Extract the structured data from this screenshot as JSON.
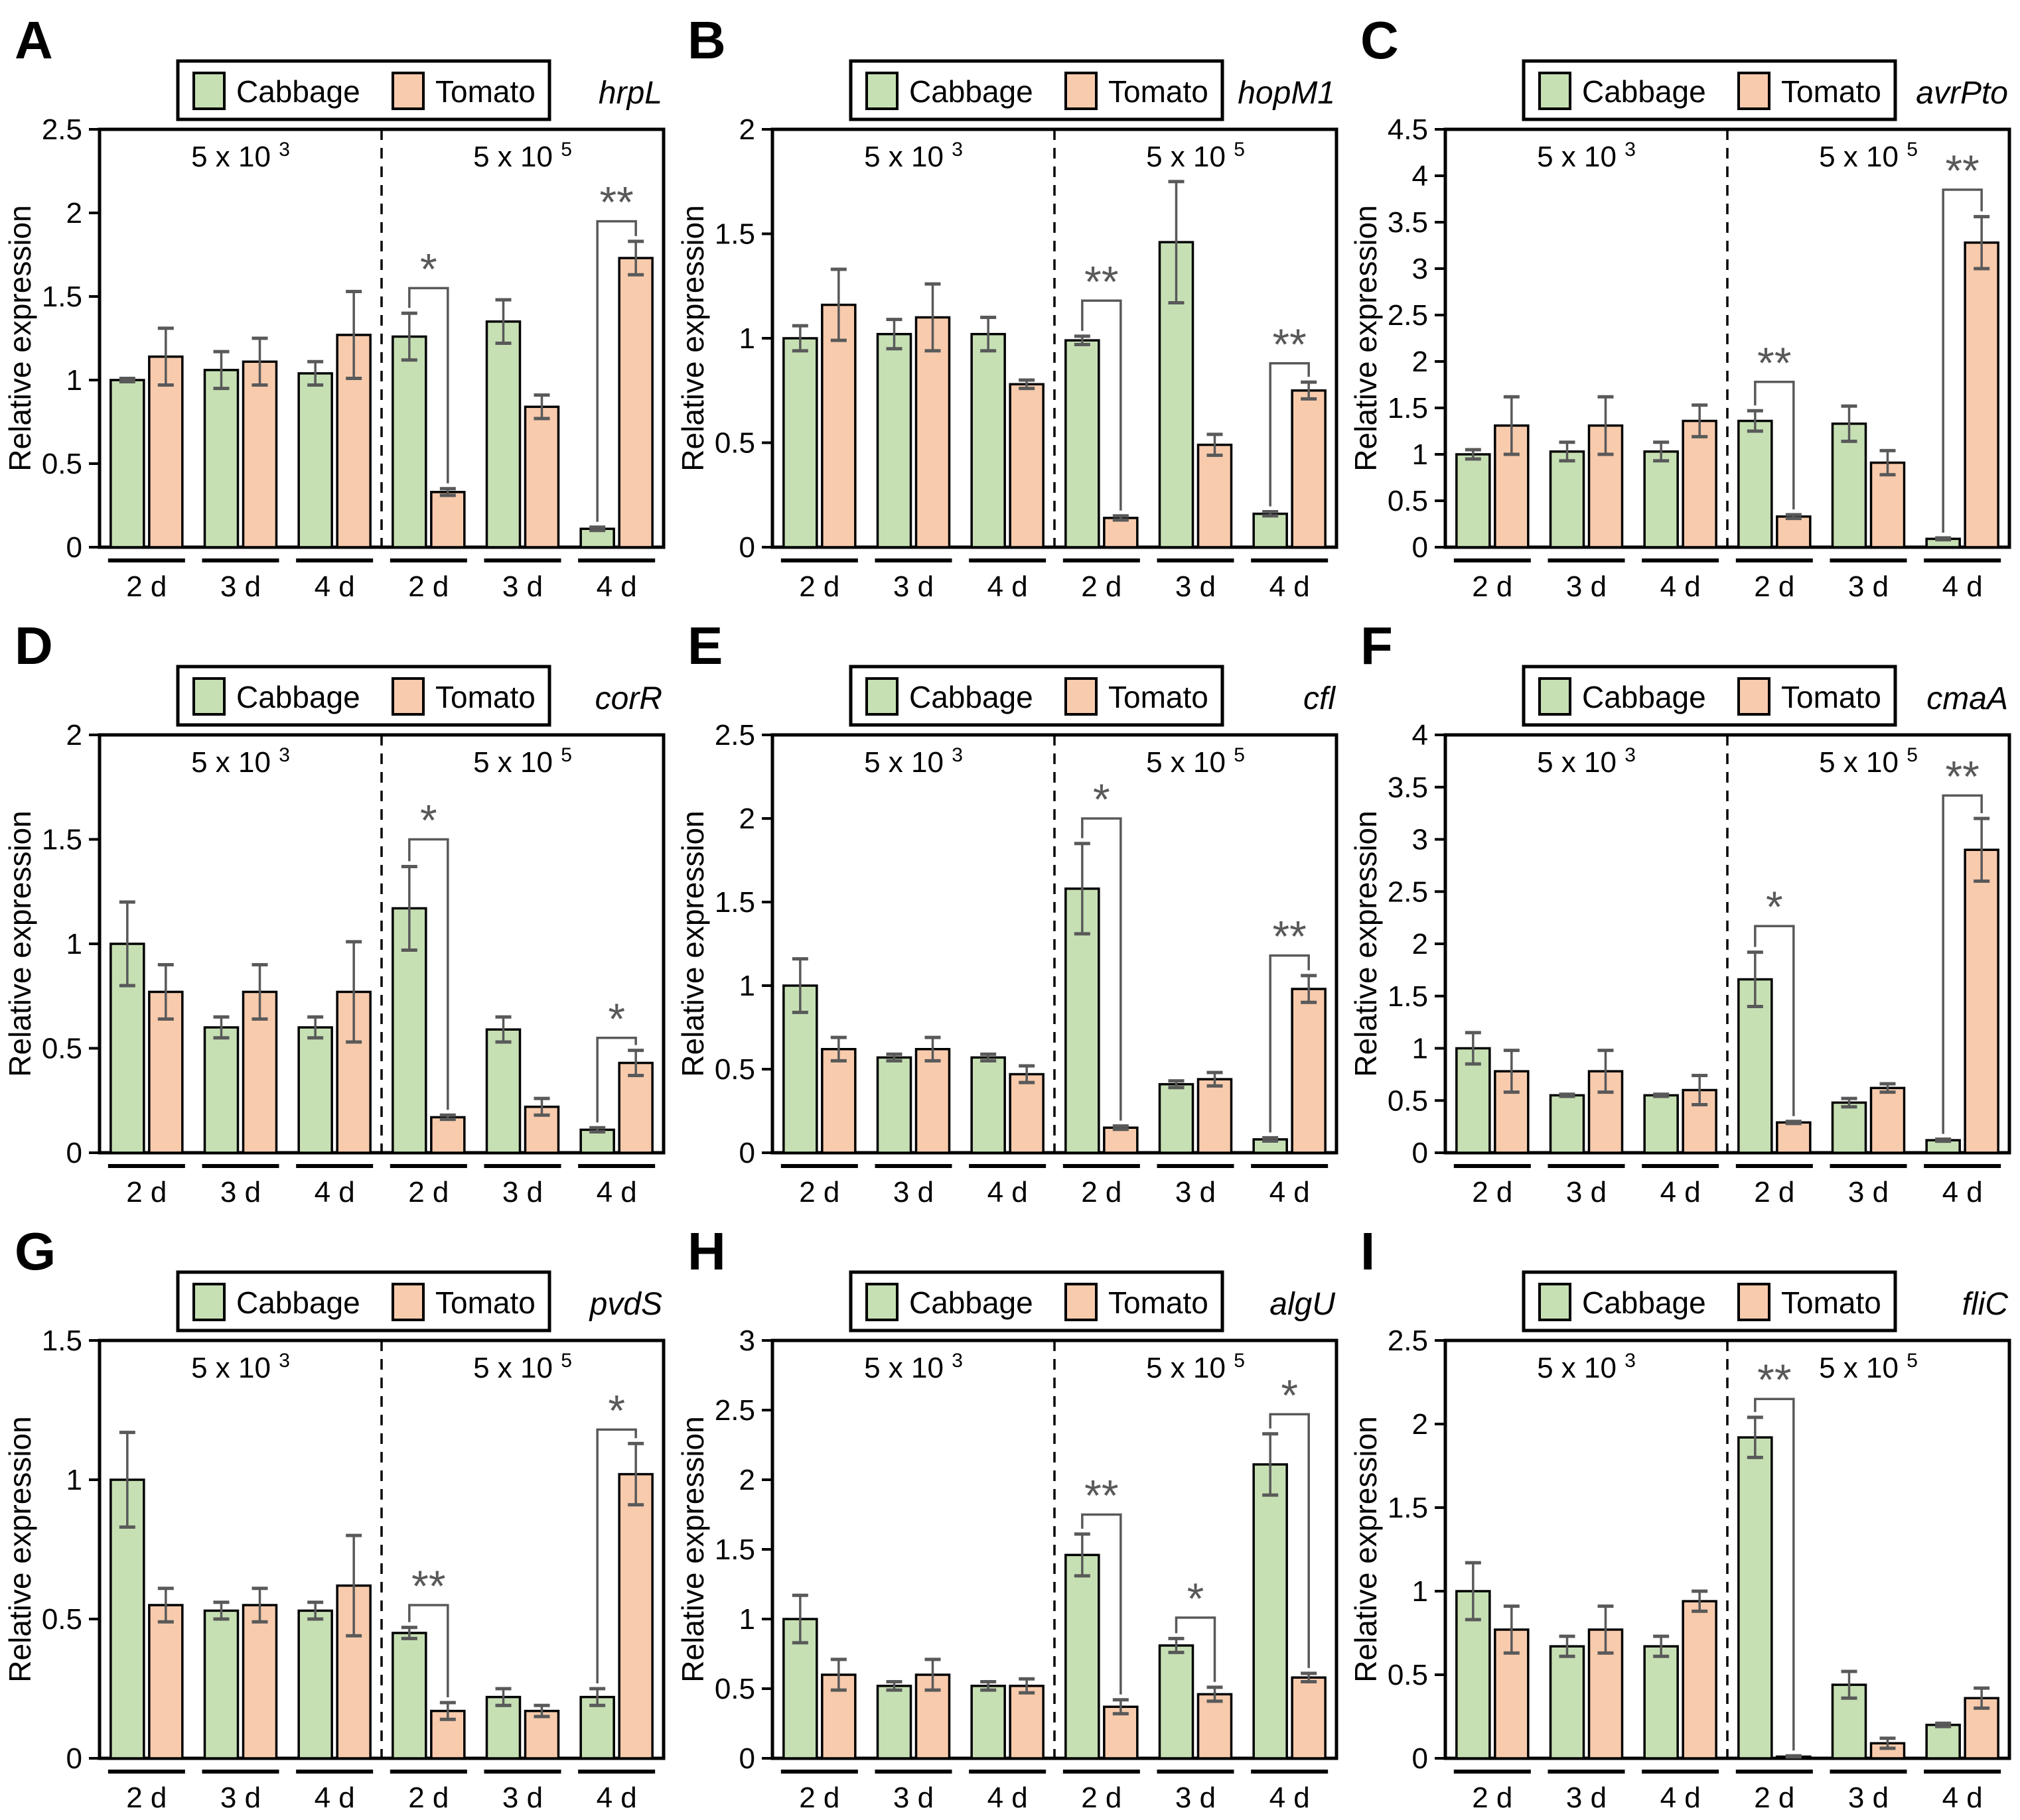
{
  "figure": {
    "ylabel": "Relative expression",
    "legend": {
      "series1_label": "Cabbage",
      "series2_label": "Tomato"
    },
    "conditions": [
      {
        "base": "5 x 10",
        "exp": "3"
      },
      {
        "base": "5 x 10",
        "exp": "5"
      }
    ],
    "timepoints": [
      "2 d",
      "3 d",
      "4 d",
      "2 d",
      "3 d",
      "4 d"
    ],
    "colors": {
      "cabbage_fill": "#c6e0b4",
      "tomato_fill": "#f8cbad",
      "bar_stroke": "#000000",
      "error_color": "#595959",
      "sig_color": "#595959",
      "text_color": "#000000"
    }
  },
  "chart_data": [
    {
      "type": "bar",
      "panel": "A",
      "gene": "hrpL",
      "ylim": [
        0,
        2.5
      ],
      "ytick_step": 0.5,
      "categories": [
        "2 d",
        "3 d",
        "4 d",
        "2 d",
        "3 d",
        "4 d"
      ],
      "series": [
        {
          "name": "Cabbage",
          "values": [
            1.0,
            1.06,
            1.04,
            1.26,
            1.35,
            0.11
          ],
          "errors": [
            0.01,
            0.11,
            0.07,
            0.14,
            0.13,
            0.01
          ]
        },
        {
          "name": "Tomato",
          "values": [
            1.14,
            1.11,
            1.27,
            0.33,
            0.84,
            1.73
          ],
          "errors": [
            0.17,
            0.14,
            0.26,
            0.02,
            0.07,
            0.1
          ]
        }
      ],
      "significance": [
        {
          "group": 3,
          "label": "*",
          "height": 1.55
        },
        {
          "group": 5,
          "label": "**",
          "height": 1.95
        }
      ]
    },
    {
      "type": "bar",
      "panel": "B",
      "gene": "hopM1",
      "ylim": [
        0,
        2
      ],
      "ytick_step": 0.5,
      "categories": [
        "2 d",
        "3 d",
        "4 d",
        "2 d",
        "3 d",
        "4 d"
      ],
      "series": [
        {
          "name": "Cabbage",
          "values": [
            1.0,
            1.02,
            1.02,
            0.99,
            1.46,
            0.16
          ],
          "errors": [
            0.06,
            0.07,
            0.08,
            0.02,
            0.29,
            0.01
          ]
        },
        {
          "name": "Tomato",
          "values": [
            1.16,
            1.1,
            0.78,
            0.14,
            0.49,
            0.75
          ],
          "errors": [
            0.17,
            0.16,
            0.02,
            0.01,
            0.05,
            0.04
          ]
        }
      ],
      "significance": [
        {
          "group": 3,
          "label": "**",
          "height": 1.18
        },
        {
          "group": 5,
          "label": "**",
          "height": 0.88
        }
      ]
    },
    {
      "type": "bar",
      "panel": "C",
      "gene": "avrPto",
      "ylim": [
        0,
        4.5
      ],
      "ytick_step": 0.5,
      "categories": [
        "2 d",
        "3 d",
        "4 d",
        "2 d",
        "3 d",
        "4 d"
      ],
      "series": [
        {
          "name": "Cabbage",
          "values": [
            1.0,
            1.03,
            1.03,
            1.36,
            1.33,
            0.09
          ],
          "errors": [
            0.05,
            0.1,
            0.1,
            0.11,
            0.19,
            0.01
          ]
        },
        {
          "name": "Tomato",
          "values": [
            1.31,
            1.31,
            1.36,
            0.33,
            0.91,
            3.28
          ],
          "errors": [
            0.31,
            0.31,
            0.17,
            0.02,
            0.13,
            0.28
          ]
        }
      ],
      "significance": [
        {
          "group": 3,
          "label": "**",
          "height": 1.78
        },
        {
          "group": 5,
          "label": "**",
          "height": 3.85
        }
      ]
    },
    {
      "type": "bar",
      "panel": "D",
      "gene": "corR",
      "ylim": [
        0,
        2
      ],
      "ytick_step": 0.5,
      "categories": [
        "2 d",
        "3 d",
        "4 d",
        "2 d",
        "3 d",
        "4 d"
      ],
      "series": [
        {
          "name": "Cabbage",
          "values": [
            1.0,
            0.6,
            0.6,
            1.17,
            0.59,
            0.11
          ],
          "errors": [
            0.2,
            0.05,
            0.05,
            0.2,
            0.06,
            0.01
          ]
        },
        {
          "name": "Tomato",
          "values": [
            0.77,
            0.77,
            0.77,
            0.17,
            0.22,
            0.43
          ],
          "errors": [
            0.13,
            0.13,
            0.24,
            0.01,
            0.04,
            0.06
          ]
        }
      ],
      "significance": [
        {
          "group": 3,
          "label": "*",
          "height": 1.5
        },
        {
          "group": 5,
          "label": "*",
          "height": 0.55
        }
      ]
    },
    {
      "type": "bar",
      "panel": "E",
      "gene": "cfl",
      "ylim": [
        0,
        2.5
      ],
      "ytick_step": 0.5,
      "categories": [
        "2 d",
        "3 d",
        "4 d",
        "2 d",
        "3 d",
        "4 d"
      ],
      "series": [
        {
          "name": "Cabbage",
          "values": [
            1.0,
            0.57,
            0.57,
            1.58,
            0.41,
            0.08
          ],
          "errors": [
            0.16,
            0.02,
            0.02,
            0.27,
            0.02,
            0.01
          ]
        },
        {
          "name": "Tomato",
          "values": [
            0.62,
            0.62,
            0.47,
            0.15,
            0.44,
            0.98
          ],
          "errors": [
            0.07,
            0.07,
            0.05,
            0.01,
            0.04,
            0.08
          ]
        }
      ],
      "significance": [
        {
          "group": 3,
          "label": "*",
          "height": 2.0
        },
        {
          "group": 5,
          "label": "**",
          "height": 1.18
        }
      ]
    },
    {
      "type": "bar",
      "panel": "F",
      "gene": "cmaA",
      "ylim": [
        0,
        4
      ],
      "ytick_step": 0.5,
      "categories": [
        "2 d",
        "3 d",
        "4 d",
        "2 d",
        "3 d",
        "4 d"
      ],
      "series": [
        {
          "name": "Cabbage",
          "values": [
            1.0,
            0.55,
            0.55,
            1.66,
            0.48,
            0.12
          ],
          "errors": [
            0.15,
            0.01,
            0.01,
            0.26,
            0.04,
            0.01
          ]
        },
        {
          "name": "Tomato",
          "values": [
            0.78,
            0.78,
            0.6,
            0.29,
            0.62,
            2.9
          ],
          "errors": [
            0.2,
            0.2,
            0.14,
            0.01,
            0.04,
            0.3
          ]
        }
      ],
      "significance": [
        {
          "group": 3,
          "label": "*",
          "height": 2.17
        },
        {
          "group": 5,
          "label": "**",
          "height": 3.42
        }
      ]
    },
    {
      "type": "bar",
      "panel": "G",
      "gene": "pvdS",
      "ylim": [
        0,
        1.5
      ],
      "ytick_step": 0.5,
      "categories": [
        "2 d",
        "3 d",
        "4 d",
        "2 d",
        "3 d",
        "4 d"
      ],
      "series": [
        {
          "name": "Cabbage",
          "values": [
            1.0,
            0.53,
            0.53,
            0.45,
            0.22,
            0.22
          ],
          "errors": [
            0.17,
            0.03,
            0.03,
            0.02,
            0.03,
            0.03
          ]
        },
        {
          "name": "Tomato",
          "values": [
            0.55,
            0.55,
            0.62,
            0.17,
            0.17,
            1.02
          ],
          "errors": [
            0.06,
            0.06,
            0.18,
            0.03,
            0.02,
            0.11
          ]
        }
      ],
      "significance": [
        {
          "group": 3,
          "label": "**",
          "height": 0.55
        },
        {
          "group": 5,
          "label": "*",
          "height": 1.18
        }
      ]
    },
    {
      "type": "bar",
      "panel": "H",
      "gene": "algU",
      "ylim": [
        0,
        3
      ],
      "ytick_step": 0.5,
      "categories": [
        "2 d",
        "3 d",
        "4 d",
        "2 d",
        "3 d",
        "4 d"
      ],
      "series": [
        {
          "name": "Cabbage",
          "values": [
            1.0,
            0.52,
            0.52,
            1.46,
            0.81,
            2.11
          ],
          "errors": [
            0.17,
            0.03,
            0.03,
            0.15,
            0.05,
            0.22
          ]
        },
        {
          "name": "Tomato",
          "values": [
            0.6,
            0.6,
            0.52,
            0.37,
            0.46,
            0.58
          ],
          "errors": [
            0.11,
            0.11,
            0.05,
            0.05,
            0.05,
            0.03
          ]
        }
      ],
      "significance": [
        {
          "group": 3,
          "label": "**",
          "height": 1.75
        },
        {
          "group": 4,
          "label": "*",
          "height": 1.01
        },
        {
          "group": 5,
          "label": "*",
          "height": 2.47
        }
      ]
    },
    {
      "type": "bar",
      "panel": "I",
      "gene": "fliC",
      "ylim": [
        0,
        2.5
      ],
      "ytick_step": 0.5,
      "categories": [
        "2 d",
        "3 d",
        "4 d",
        "2 d",
        "3 d",
        "4 d"
      ],
      "series": [
        {
          "name": "Cabbage",
          "values": [
            1.0,
            0.67,
            0.67,
            1.92,
            0.44,
            0.2
          ],
          "errors": [
            0.17,
            0.06,
            0.06,
            0.12,
            0.08,
            0.01
          ]
        },
        {
          "name": "Tomato",
          "values": [
            0.77,
            0.77,
            0.94,
            0.01,
            0.09,
            0.36
          ],
          "errors": [
            0.14,
            0.14,
            0.06,
            0.005,
            0.03,
            0.06
          ]
        }
      ],
      "significance": [
        {
          "group": 3,
          "label": "**",
          "height": 2.15
        }
      ]
    }
  ]
}
